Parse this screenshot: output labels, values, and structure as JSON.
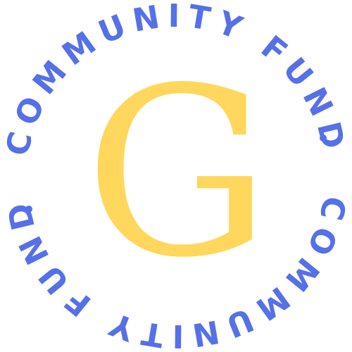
{
  "logo": {
    "top_text": "COMMUNITY FUND",
    "bottom_text": "COMMUNITY FUND",
    "monogram": "G",
    "colors": {
      "ring_text": "#5670e8",
      "monogram": "#ffd75c",
      "background": "#ffffff"
    }
  }
}
